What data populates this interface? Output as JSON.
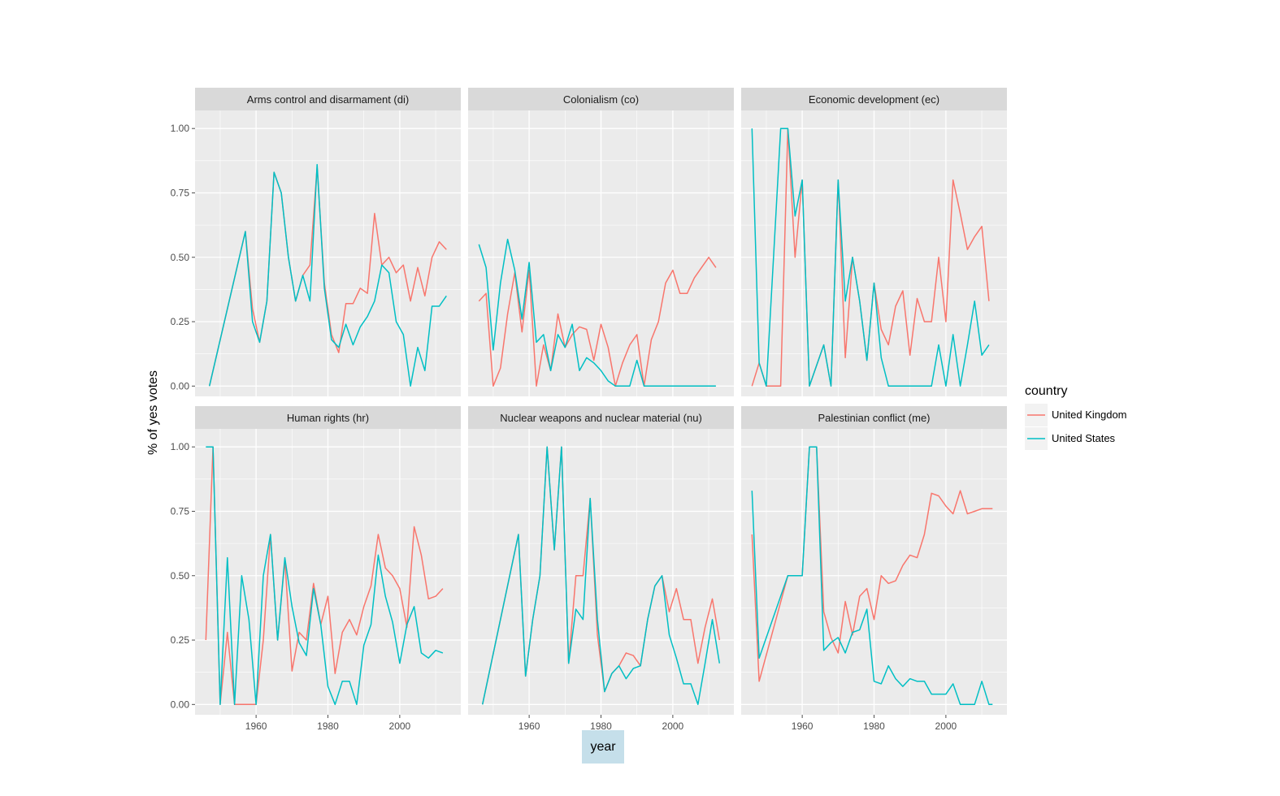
{
  "chart_data": {
    "type": "line",
    "facet_layout": "2 rows x 3 columns, shared axes",
    "xlabel": "year",
    "ylabel": "% of yes votes",
    "xlim": [
      1943,
      2017
    ],
    "ylim": [
      -0.04,
      1.07
    ],
    "x_ticks": [
      1960,
      1980,
      2000
    ],
    "y_ticks": [
      0,
      0.25,
      0.5,
      0.75,
      1.0
    ],
    "y_tick_labels": [
      "0.00",
      "0.25",
      "0.50",
      "0.75",
      "1.00"
    ],
    "grid": true,
    "legend": {
      "title": "country",
      "placement": "right",
      "entries": [
        {
          "name": "United Kingdom",
          "color": "#F8766D"
        },
        {
          "name": "United States",
          "color": "#00BFC4"
        }
      ]
    },
    "colors": {
      "panel_background": "#EBEBEB",
      "strip_background": "#D9D9D9",
      "grid": "#FFFFFF",
      "xlabel_highlight": "#C5DFEA"
    },
    "facets": [
      {
        "title": "Arms control and disarmament (di)",
        "series": [
          {
            "name": "United Kingdom",
            "x": [
              1947,
              1957,
              1959,
              1961,
              1963,
              1965,
              1967,
              1969,
              1971,
              1973,
              1975,
              1977,
              1979,
              1981,
              1983,
              1985,
              1987,
              1989,
              1991,
              1993,
              1995,
              1997,
              1999,
              2001,
              2003,
              2005,
              2007,
              2009,
              2011,
              2013
            ],
            "y": [
              0,
              0.6,
              0.3,
              0.17,
              0.33,
              0.83,
              0.75,
              0.5,
              0.33,
              0.43,
              0.47,
              0.85,
              0.4,
              0.2,
              0.13,
              0.32,
              0.32,
              0.38,
              0.36,
              0.67,
              0.47,
              0.5,
              0.44,
              0.47,
              0.33,
              0.46,
              0.35,
              0.5,
              0.56,
              0.53
            ]
          },
          {
            "name": "United States",
            "x": [
              1947,
              1957,
              1959,
              1961,
              1963,
              1965,
              1967,
              1969,
              1971,
              1973,
              1975,
              1977,
              1979,
              1981,
              1983,
              1985,
              1987,
              1989,
              1991,
              1993,
              1995,
              1997,
              1999,
              2001,
              2003,
              2005,
              2007,
              2009,
              2011,
              2013
            ],
            "y": [
              0,
              0.6,
              0.25,
              0.17,
              0.33,
              0.83,
              0.75,
              0.5,
              0.33,
              0.43,
              0.33,
              0.86,
              0.38,
              0.18,
              0.15,
              0.24,
              0.16,
              0.23,
              0.27,
              0.33,
              0.47,
              0.44,
              0.25,
              0.2,
              0,
              0.15,
              0.06,
              0.31,
              0.31,
              0.35
            ]
          }
        ]
      },
      {
        "title": "Colonialism (co)",
        "series": [
          {
            "name": "United Kingdom",
            "x": [
              1946,
              1948,
              1950,
              1952,
              1954,
              1956,
              1958,
              1960,
              1962,
              1964,
              1966,
              1968,
              1970,
              1972,
              1974,
              1976,
              1978,
              1980,
              1982,
              1984,
              1986,
              1988,
              1990,
              1992,
              1994,
              1996,
              1998,
              2000,
              2002,
              2004,
              2006,
              2008,
              2010,
              2012
            ],
            "y": [
              0.33,
              0.36,
              0,
              0.07,
              0.28,
              0.44,
              0.21,
              0.45,
              0,
              0.16,
              0.06,
              0.28,
              0.15,
              0.2,
              0.23,
              0.22,
              0.1,
              0.24,
              0.15,
              0,
              0.09,
              0.16,
              0.2,
              0,
              0.18,
              0.25,
              0.4,
              0.45,
              0.36,
              0.36,
              0.42,
              0.46,
              0.5,
              0.46
            ]
          },
          {
            "name": "United States",
            "x": [
              1946,
              1948,
              1950,
              1952,
              1954,
              1956,
              1958,
              1960,
              1962,
              1964,
              1966,
              1968,
              1970,
              1972,
              1974,
              1976,
              1978,
              1980,
              1982,
              1984,
              1986,
              1988,
              1990,
              1992,
              1994,
              1996,
              1998,
              2000,
              2002,
              2004,
              2006,
              2008,
              2010,
              2012
            ],
            "y": [
              0.55,
              0.46,
              0.14,
              0.4,
              0.57,
              0.45,
              0.26,
              0.48,
              0.17,
              0.2,
              0.06,
              0.2,
              0.15,
              0.24,
              0.06,
              0.11,
              0.09,
              0.06,
              0.02,
              0,
              0,
              0,
              0.1,
              0,
              0,
              0,
              0,
              0,
              0,
              0,
              0,
              0,
              0,
              0
            ]
          }
        ]
      },
      {
        "title": "Economic development (ec)",
        "series": [
          {
            "name": "United Kingdom",
            "x": [
              1946,
              1948,
              1950,
              1952,
              1954,
              1956,
              1958,
              1960,
              1962,
              1964,
              1966,
              1968,
              1970,
              1972,
              1974,
              1976,
              1978,
              1980,
              1982,
              1984,
              1986,
              1988,
              1990,
              1992,
              1994,
              1996,
              1998,
              2000,
              2002,
              2004,
              2006,
              2008,
              2010,
              2012
            ],
            "y": [
              0,
              0.09,
              0,
              0,
              0,
              1,
              0.5,
              0.8,
              0,
              0.08,
              0.16,
              0,
              0.8,
              0.11,
              0.5,
              0.33,
              0.1,
              0.4,
              0.22,
              0.16,
              0.31,
              0.37,
              0.12,
              0.34,
              0.25,
              0.25,
              0.5,
              0.25,
              0.8,
              0.67,
              0.53,
              0.58,
              0.62,
              0.33
            ]
          },
          {
            "name": "United States",
            "x": [
              1946,
              1948,
              1950,
              1952,
              1954,
              1956,
              1958,
              1960,
              1962,
              1964,
              1966,
              1968,
              1970,
              1972,
              1974,
              1976,
              1978,
              1980,
              1982,
              1984,
              1986,
              1988,
              1990,
              1992,
              1994,
              1996,
              1998,
              2000,
              2002,
              2004,
              2006,
              2008,
              2010,
              2012
            ],
            "y": [
              1,
              0.09,
              0,
              0.5,
              1,
              1,
              0.66,
              0.8,
              0,
              0.08,
              0.16,
              0,
              0.8,
              0.33,
              0.5,
              0.33,
              0.1,
              0.4,
              0.11,
              0,
              0,
              0,
              0,
              0,
              0,
              0,
              0.16,
              0,
              0.2,
              0,
              0.16,
              0.33,
              0.12,
              0.16
            ]
          }
        ]
      },
      {
        "title": "Human rights (hr)",
        "series": [
          {
            "name": "United Kingdom",
            "x": [
              1946,
              1948,
              1950,
              1952,
              1954,
              1956,
              1958,
              1960,
              1962,
              1964,
              1966,
              1968,
              1970,
              1972,
              1974,
              1976,
              1978,
              1980,
              1982,
              1984,
              1986,
              1988,
              1990,
              1992,
              1994,
              1996,
              1998,
              2000,
              2002,
              2004,
              2006,
              2008,
              2010,
              2012
            ],
            "y": [
              0.25,
              1,
              0,
              0.28,
              0,
              0,
              0,
              0,
              0.25,
              0.66,
              0.25,
              0.56,
              0.13,
              0.28,
              0.25,
              0.47,
              0.31,
              0.42,
              0.12,
              0.28,
              0.33,
              0.27,
              0.38,
              0.46,
              0.66,
              0.53,
              0.5,
              0.45,
              0.3,
              0.69,
              0.58,
              0.41,
              0.42,
              0.45
            ]
          },
          {
            "name": "United States",
            "x": [
              1946,
              1948,
              1950,
              1952,
              1954,
              1956,
              1958,
              1960,
              1962,
              1964,
              1966,
              1968,
              1970,
              1972,
              1974,
              1976,
              1978,
              1980,
              1982,
              1984,
              1986,
              1988,
              1990,
              1992,
              1994,
              1996,
              1998,
              2000,
              2002,
              2004,
              2006,
              2008,
              2010,
              2012
            ],
            "y": [
              1,
              1,
              0,
              0.57,
              0,
              0.5,
              0.33,
              0,
              0.5,
              0.66,
              0.25,
              0.57,
              0.38,
              0.24,
              0.19,
              0.45,
              0.31,
              0.07,
              0,
              0.09,
              0.09,
              0,
              0.23,
              0.31,
              0.58,
              0.42,
              0.32,
              0.16,
              0.31,
              0.38,
              0.2,
              0.18,
              0.21,
              0.2
            ]
          }
        ]
      },
      {
        "title": "Nuclear weapons and nuclear material (nu)",
        "series": [
          {
            "name": "United Kingdom",
            "x": [
              1947,
              1957,
              1959,
              1961,
              1963,
              1965,
              1967,
              1969,
              1971,
              1973,
              1975,
              1977,
              1979,
              1981,
              1983,
              1985,
              1987,
              1989,
              1991,
              1993,
              1995,
              1997,
              1999,
              2001,
              2003,
              2005,
              2007,
              2009,
              2011,
              2013
            ],
            "y": [
              0,
              0.66,
              0.11,
              0.33,
              0.5,
              1,
              0.6,
              1,
              0.16,
              0.5,
              0.5,
              0.8,
              0.27,
              0.05,
              0.12,
              0.15,
              0.2,
              0.19,
              0.15,
              0.33,
              0.46,
              0.5,
              0.36,
              0.45,
              0.33,
              0.33,
              0.16,
              0.3,
              0.41,
              0.25
            ]
          },
          {
            "name": "United States",
            "x": [
              1947,
              1957,
              1959,
              1961,
              1963,
              1965,
              1967,
              1969,
              1971,
              1973,
              1975,
              1977,
              1979,
              1981,
              1983,
              1985,
              1987,
              1989,
              1991,
              1993,
              1995,
              1997,
              1999,
              2001,
              2003,
              2005,
              2007,
              2009,
              2011,
              2013
            ],
            "y": [
              0,
              0.66,
              0.11,
              0.33,
              0.5,
              1,
              0.6,
              1,
              0.16,
              0.37,
              0.33,
              0.8,
              0.33,
              0.05,
              0.12,
              0.15,
              0.1,
              0.14,
              0.15,
              0.33,
              0.46,
              0.5,
              0.27,
              0.18,
              0.08,
              0.08,
              0,
              0.16,
              0.33,
              0.16
            ]
          }
        ]
      },
      {
        "title": "Palestinian conflict (me)",
        "series": [
          {
            "name": "United Kingdom",
            "x": [
              1946,
              1948,
              1956,
              1958,
              1960,
              1962,
              1964,
              1966,
              1968,
              1970,
              1972,
              1974,
              1976,
              1978,
              1980,
              1982,
              1984,
              1986,
              1988,
              1990,
              1992,
              1994,
              1996,
              1998,
              2000,
              2002,
              2004,
              2006,
              2008,
              2010,
              2012,
              2013
            ],
            "y": [
              0.66,
              0.09,
              0.5,
              0.5,
              0.5,
              1,
              1,
              0.36,
              0.26,
              0.2,
              0.4,
              0.27,
              0.42,
              0.45,
              0.33,
              0.5,
              0.47,
              0.48,
              0.54,
              0.58,
              0.57,
              0.66,
              0.82,
              0.81,
              0.77,
              0.74,
              0.83,
              0.74,
              0.75,
              0.76,
              0.76,
              0.76
            ]
          },
          {
            "name": "United States",
            "x": [
              1946,
              1948,
              1956,
              1958,
              1960,
              1962,
              1964,
              1966,
              1968,
              1970,
              1972,
              1974,
              1976,
              1978,
              1980,
              1982,
              1984,
              1986,
              1988,
              1990,
              1992,
              1994,
              1996,
              1998,
              2000,
              2002,
              2004,
              2006,
              2008,
              2010,
              2012,
              2013
            ],
            "y": [
              0.83,
              0.18,
              0.5,
              0.5,
              0.5,
              1,
              1,
              0.21,
              0.24,
              0.26,
              0.2,
              0.28,
              0.29,
              0.37,
              0.09,
              0.08,
              0.15,
              0.1,
              0.07,
              0.1,
              0.09,
              0.09,
              0.04,
              0.04,
              0.04,
              0.08,
              0,
              0,
              0,
              0.09,
              0,
              0
            ]
          }
        ]
      }
    ]
  }
}
